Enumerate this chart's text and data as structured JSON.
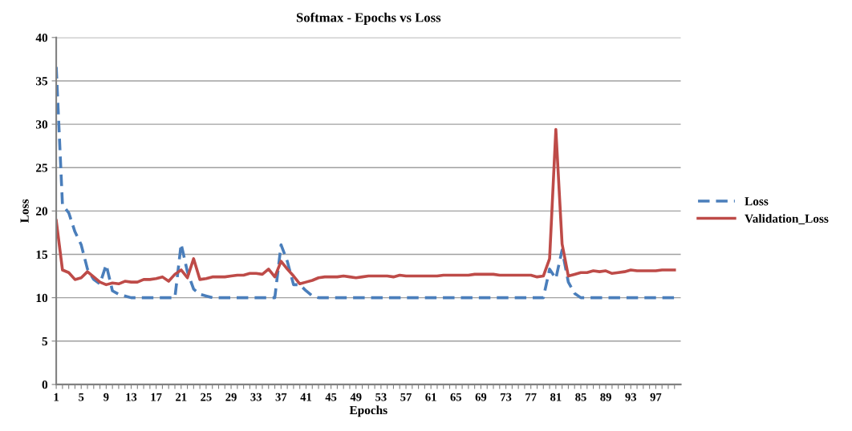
{
  "chart_data": {
    "type": "line",
    "title": "Softmax - Epochs vs Loss",
    "xlabel": "Epochs",
    "ylabel": "Loss",
    "categories": [
      "1",
      null,
      null,
      null,
      "5",
      null,
      null,
      null,
      "9",
      null,
      null,
      null,
      "13",
      null,
      null,
      null,
      "17",
      null,
      null,
      null,
      "21",
      null,
      null,
      null,
      "25",
      null,
      null,
      null,
      "29",
      null,
      null,
      null,
      "33",
      null,
      null,
      null,
      "37",
      null,
      null,
      null,
      "41",
      null,
      null,
      null,
      "45",
      null,
      null,
      null,
      "49",
      null,
      null,
      null,
      "53",
      null,
      null,
      null,
      "57",
      null,
      null,
      null,
      "61",
      null,
      null,
      null,
      "65",
      null,
      null,
      null,
      "69",
      null,
      null,
      null,
      "73",
      null,
      null,
      null,
      "77",
      null,
      null,
      null,
      "81",
      null,
      null,
      null,
      "85",
      null,
      null,
      null,
      "89",
      null,
      null,
      null,
      "93",
      null,
      null,
      null,
      "97",
      null,
      null,
      null
    ],
    "series": [
      {
        "name": "Loss",
        "color": "#4a7ebb",
        "line_style": "dashed",
        "values": [
          36.6,
          20.7,
          19.8,
          17.6,
          16.1,
          13.3,
          12.1,
          11.6,
          13.8,
          10.8,
          10.4,
          10.2,
          10,
          10,
          10,
          10,
          10,
          10,
          10,
          10,
          16.2,
          13,
          11,
          10.4,
          10.2,
          10,
          10,
          10,
          10,
          10,
          10,
          10,
          10,
          10,
          10,
          10,
          16.1,
          14.2,
          11.5,
          11.5,
          10.8,
          10.2,
          10,
          10,
          10,
          10,
          10,
          10,
          10,
          10,
          10,
          10,
          10,
          10,
          10,
          10,
          10,
          10,
          10,
          10,
          10,
          10,
          10,
          10,
          10,
          10,
          10,
          10,
          10,
          10,
          10,
          10,
          10,
          10,
          10,
          10,
          10,
          10,
          10,
          13.3,
          12.2,
          15.5,
          11.8,
          10.5,
          10,
          10,
          10,
          10,
          10,
          10,
          10,
          10,
          10,
          10,
          10,
          10,
          10,
          10,
          10,
          10
        ]
      },
      {
        "name": "Validation_Loss",
        "color": "#be4b48",
        "line_style": "solid",
        "values": [
          18.9,
          13.2,
          12.9,
          12.1,
          12.3,
          13,
          12.4,
          11.8,
          11.5,
          11.7,
          11.6,
          11.9,
          11.8,
          11.8,
          12.1,
          12.1,
          12.2,
          12.4,
          11.9,
          12.7,
          13.2,
          12.3,
          14.5,
          12.1,
          12.2,
          12.4,
          12.4,
          12.4,
          12.5,
          12.6,
          12.6,
          12.8,
          12.8,
          12.7,
          13.3,
          12.4,
          14.2,
          13.3,
          12.5,
          11.6,
          11.8,
          12,
          12.3,
          12.4,
          12.4,
          12.4,
          12.5,
          12.4,
          12.3,
          12.4,
          12.5,
          12.5,
          12.5,
          12.5,
          12.4,
          12.6,
          12.5,
          12.5,
          12.5,
          12.5,
          12.5,
          12.5,
          12.6,
          12.6,
          12.6,
          12.6,
          12.6,
          12.7,
          12.7,
          12.7,
          12.7,
          12.6,
          12.6,
          12.6,
          12.6,
          12.6,
          12.6,
          12.4,
          12.5,
          14.5,
          29.4,
          16.2,
          12.5,
          12.7,
          12.9,
          12.9,
          13.1,
          13,
          13.1,
          12.8,
          12.9,
          13,
          13.2,
          13.1,
          13.1,
          13.1,
          13.1,
          13.2,
          13.2,
          13.2
        ]
      }
    ],
    "ylim": [
      0,
      40
    ],
    "yticks": [
      0,
      5,
      10,
      15,
      20,
      25,
      30,
      35,
      40
    ],
    "grid": "y",
    "legend": "right",
    "marker": "none"
  }
}
